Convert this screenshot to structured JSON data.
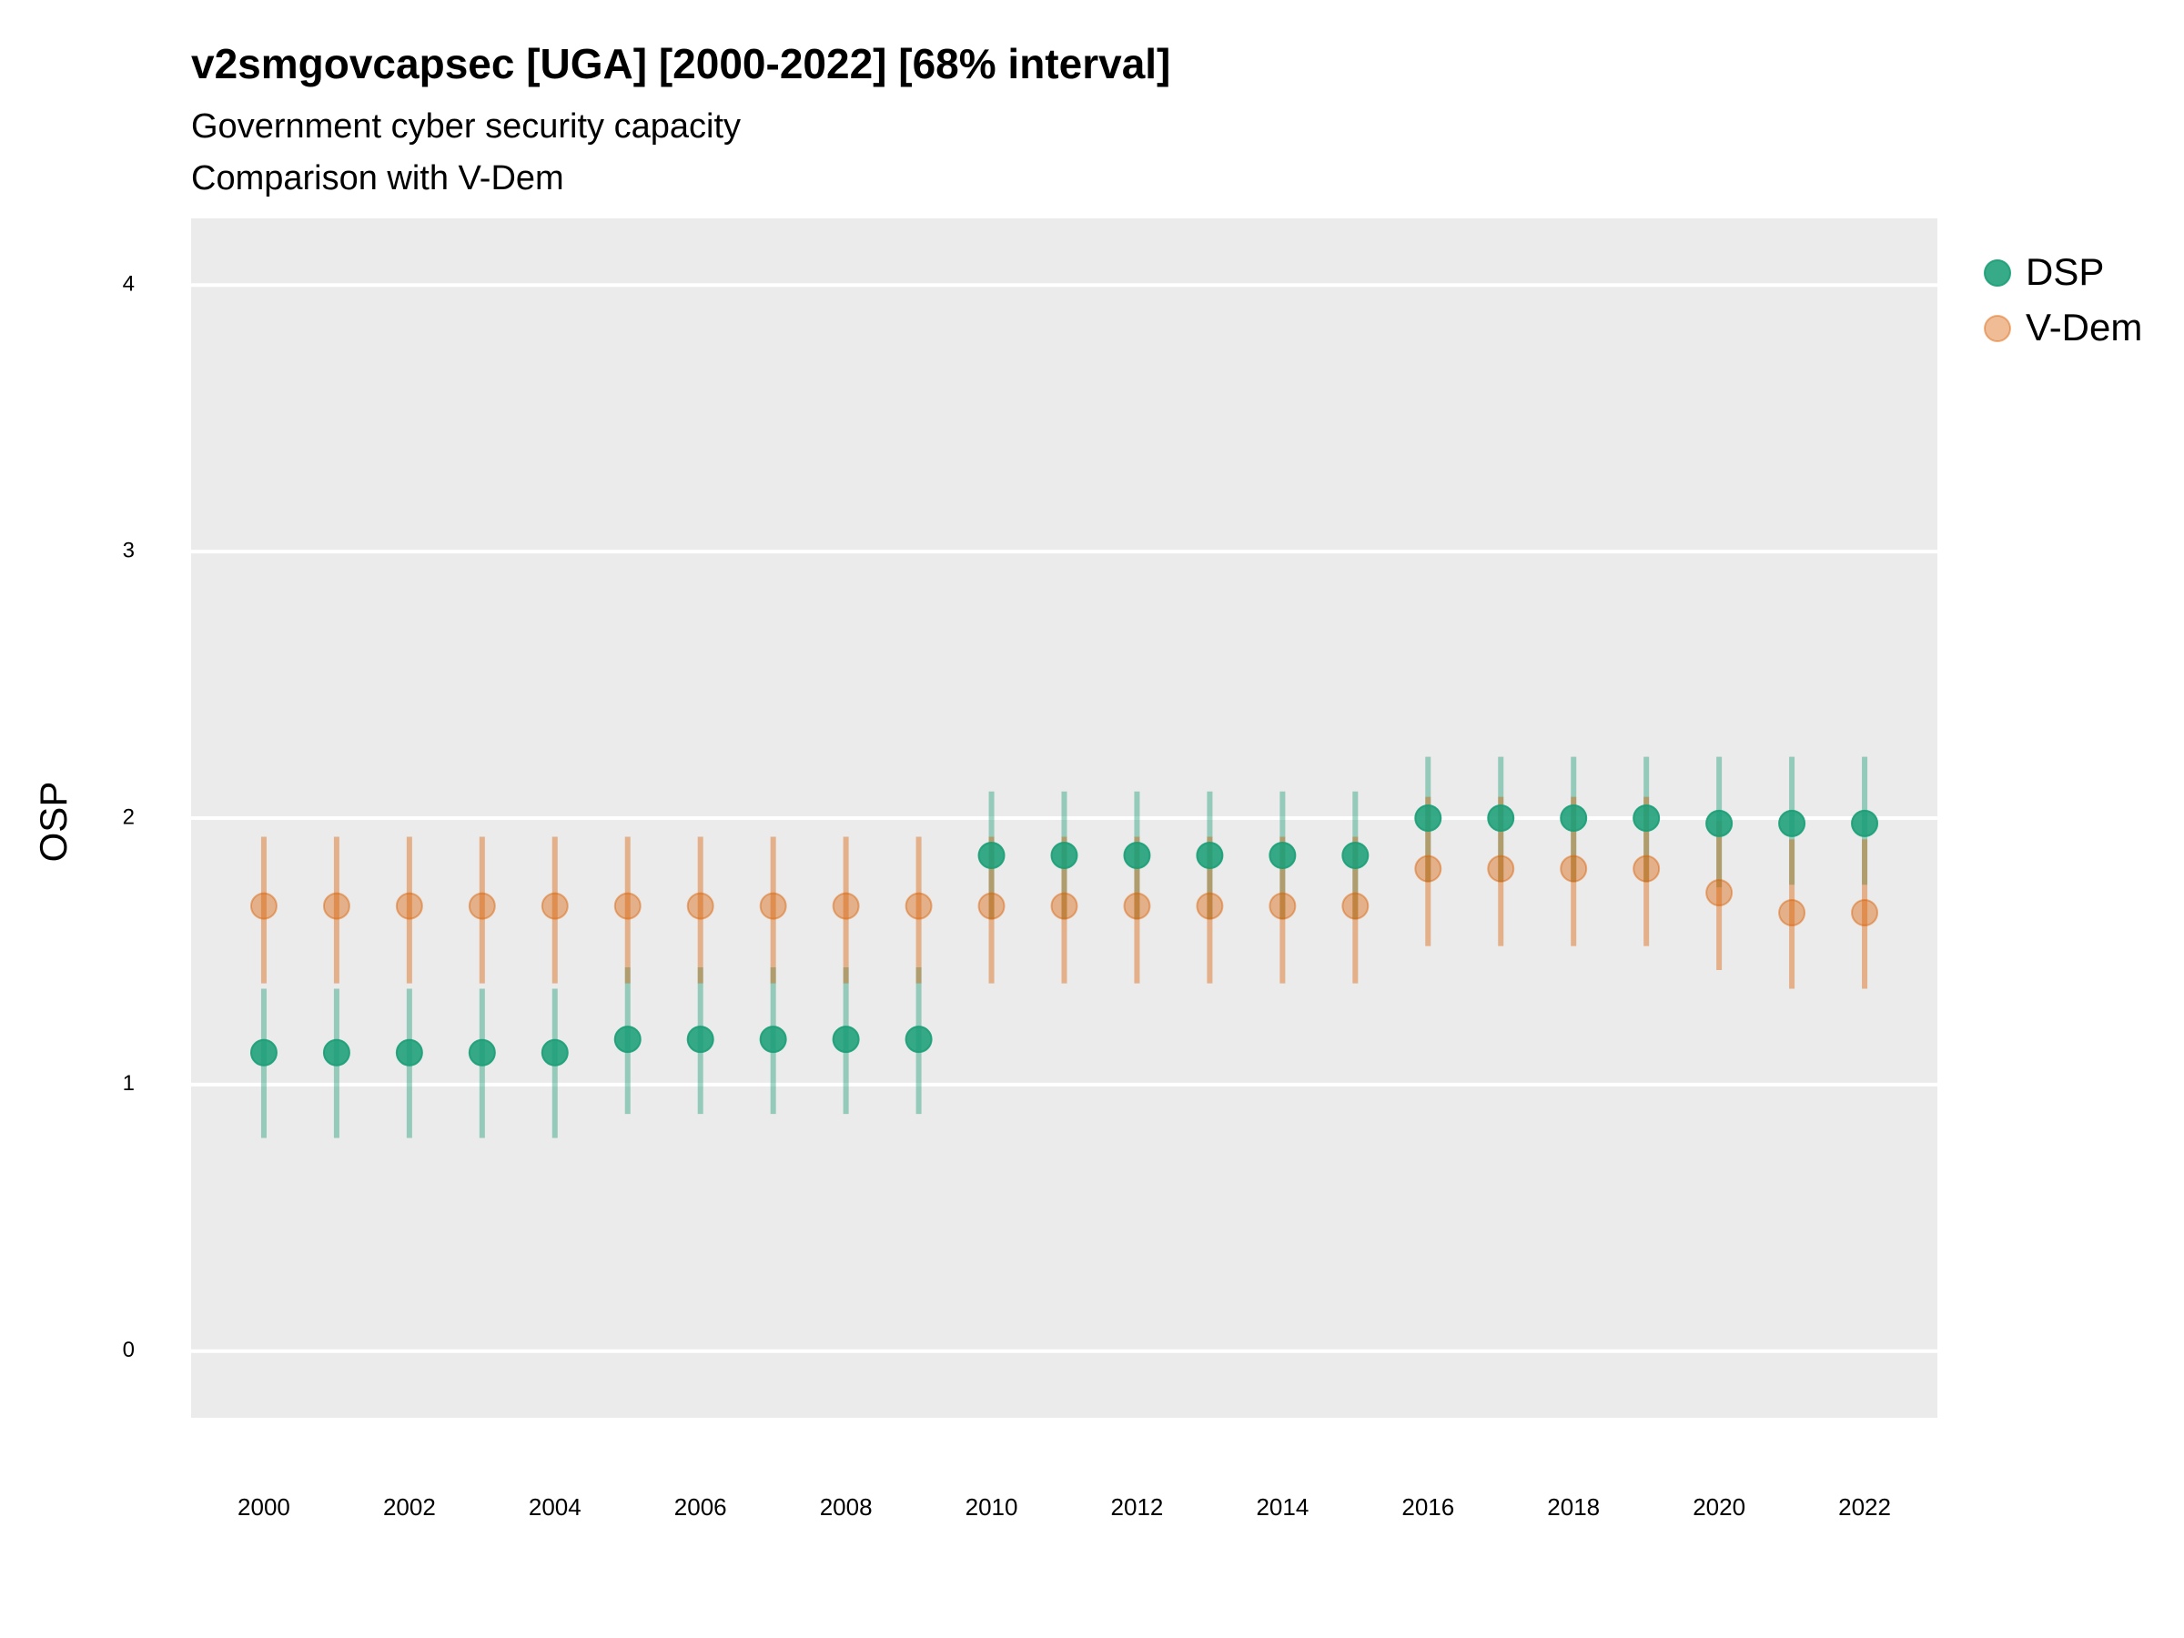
{
  "chart_data": {
    "type": "pointrange",
    "title": "v2smgovcapsec [UGA] [2000-2022] [68% interval]",
    "subtitle": "Government cyber security capacity",
    "subtitle2": "Comparison with V-Dem",
    "y_label": "OSP",
    "x": [
      2000,
      2001,
      2002,
      2003,
      2004,
      2005,
      2006,
      2007,
      2008,
      2009,
      2010,
      2011,
      2012,
      2013,
      2014,
      2015,
      2016,
      2017,
      2018,
      2019,
      2020,
      2021,
      2022
    ],
    "series": [
      {
        "name": "DSP",
        "color": "#1b9e77",
        "values": [
          1.12,
          1.12,
          1.12,
          1.12,
          1.12,
          1.17,
          1.17,
          1.17,
          1.17,
          1.17,
          1.86,
          1.86,
          1.86,
          1.86,
          1.86,
          1.86,
          2.0,
          2.0,
          2.0,
          2.0,
          1.98,
          1.98,
          1.98
        ],
        "lower": [
          0.8,
          0.8,
          0.8,
          0.8,
          0.8,
          0.89,
          0.89,
          0.89,
          0.89,
          0.89,
          1.62,
          1.62,
          1.62,
          1.62,
          1.62,
          1.62,
          1.76,
          1.76,
          1.76,
          1.76,
          1.74,
          1.75,
          1.75
        ],
        "upper": [
          1.36,
          1.36,
          1.36,
          1.36,
          1.36,
          1.44,
          1.44,
          1.44,
          1.44,
          1.44,
          2.1,
          2.1,
          2.1,
          2.1,
          2.1,
          2.1,
          2.23,
          2.23,
          2.23,
          2.23,
          2.23,
          2.23,
          2.23
        ]
      },
      {
        "name": "V-Dem",
        "color": "#d95f02",
        "values": [
          1.67,
          1.67,
          1.67,
          1.67,
          1.67,
          1.67,
          1.67,
          1.67,
          1.67,
          1.67,
          1.67,
          1.67,
          1.67,
          1.67,
          1.67,
          1.67,
          1.81,
          1.81,
          1.81,
          1.81,
          1.72,
          1.645,
          1.645
        ],
        "lower": [
          1.38,
          1.38,
          1.38,
          1.38,
          1.38,
          1.38,
          1.38,
          1.38,
          1.38,
          1.38,
          1.38,
          1.38,
          1.38,
          1.38,
          1.38,
          1.38,
          1.52,
          1.52,
          1.52,
          1.52,
          1.43,
          1.36,
          1.36
        ],
        "upper": [
          1.93,
          1.93,
          1.93,
          1.93,
          1.93,
          1.93,
          1.93,
          1.93,
          1.93,
          1.93,
          1.93,
          1.93,
          1.93,
          1.93,
          1.93,
          1.93,
          2.08,
          2.08,
          2.08,
          2.08,
          1.99,
          1.92,
          1.92
        ]
      }
    ],
    "xlim": [
      1999,
      2023
    ],
    "xticks": [
      2000,
      2002,
      2004,
      2006,
      2008,
      2010,
      2012,
      2014,
      2016,
      2018,
      2020,
      2022
    ],
    "ylim": [
      -0.25,
      4.25
    ],
    "yticks": [
      0,
      1,
      2,
      3,
      4
    ],
    "grid": true,
    "legend": "right"
  }
}
